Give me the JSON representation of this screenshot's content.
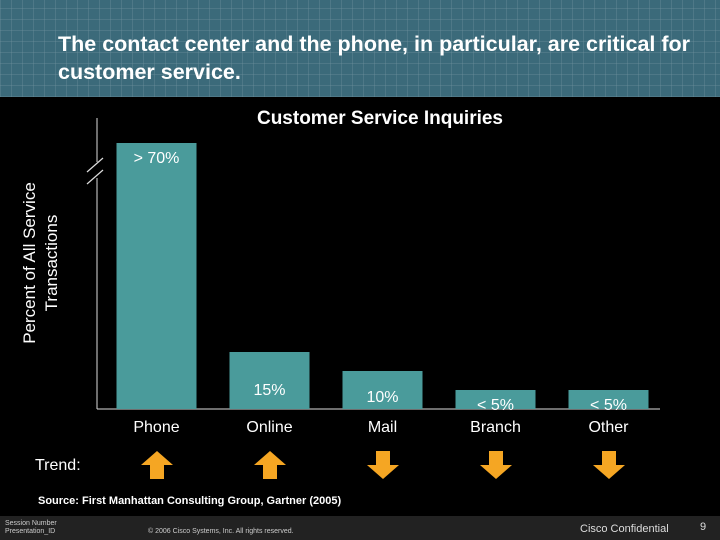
{
  "slide": {
    "title": "The contact center and the phone, in particular, are critical for customer service.",
    "trend_label": "Trend:",
    "source": "Source: First Manhattan Consulting Group, Gartner (2005)",
    "footer_left": "Session Number\nPresentation_ID",
    "copyright": "© 2006 Cisco Systems, Inc. All rights reserved.",
    "confidential": "Cisco Confidential",
    "page_number": "9"
  },
  "chart_data": {
    "type": "bar",
    "title": "Customer Service Inquiries",
    "ylabel": "Percent of All Service\nTransactions",
    "xlabel": "",
    "categories": [
      "Phone",
      "Online",
      "Mail",
      "Branch",
      "Other"
    ],
    "values": [
      70,
      15,
      10,
      5,
      5
    ],
    "data_labels": [
      "> 70%",
      "15%",
      "10%",
      "< 5%",
      "< 5%"
    ],
    "trend": [
      "up",
      "up",
      "down",
      "down",
      "down"
    ],
    "axis_break": true,
    "ylim": [
      0,
      85
    ],
    "grid": false,
    "colors": {
      "bar": "#4a9b9b",
      "arrow": "#f5a623",
      "header": "#3b6a7a"
    }
  }
}
